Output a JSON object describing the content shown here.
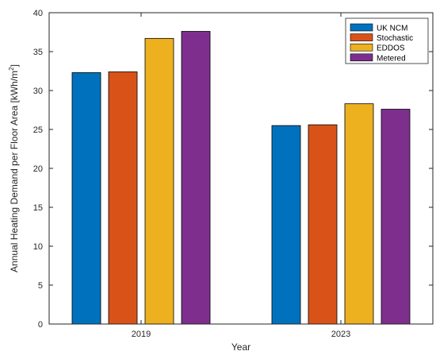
{
  "chart_data": {
    "type": "bar",
    "categories": [
      "2019",
      "2023"
    ],
    "series": [
      {
        "name": "UK NCM",
        "values": [
          32.3,
          25.5
        ],
        "color": "#0072BD"
      },
      {
        "name": "Stochastic",
        "values": [
          32.4,
          25.6
        ],
        "color": "#D95319"
      },
      {
        "name": "EDDOS",
        "values": [
          36.7,
          28.3
        ],
        "color": "#EDB120"
      },
      {
        "name": "Metered",
        "values": [
          37.6,
          27.6
        ],
        "color": "#7E2F8E"
      }
    ],
    "xlabel": "Year",
    "ylabel": "Annual Heating Demand per Floor Area [kWh/m",
    "ylabel_superscript": "2",
    "ylabel_suffix": "]",
    "ylim": [
      0,
      40
    ],
    "yticks": [
      "0",
      "5",
      "10",
      "15",
      "20",
      "25",
      "30",
      "35",
      "40"
    ],
    "grid": false,
    "legend_position": "top-right"
  }
}
